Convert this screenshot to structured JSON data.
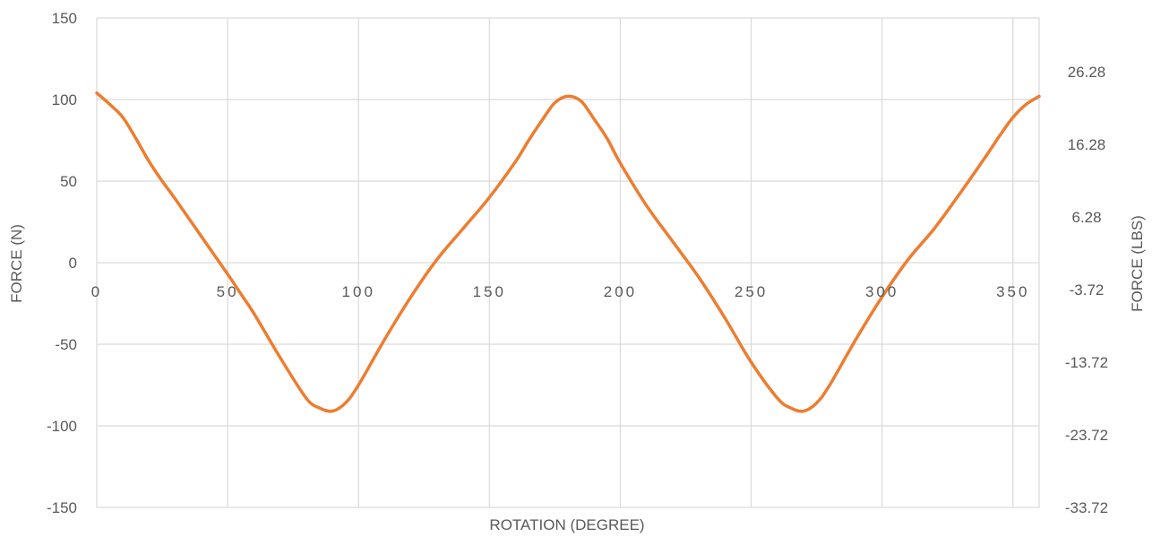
{
  "chart_data": {
    "type": "line",
    "xlabel": "ROTATION (DEGREE)",
    "ylabel": "FORCE (N)",
    "y2label": "FORCE (LBS)",
    "xlim": [
      0,
      360
    ],
    "ylim": [
      -150,
      150
    ],
    "grid": true,
    "x_ticks": [
      0,
      50,
      100,
      150,
      200,
      250,
      300,
      350
    ],
    "x_tick_labels": [
      "0",
      "50",
      "100",
      "150",
      "200",
      "250",
      "300",
      "350"
    ],
    "y_ticks": [
      -150,
      -100,
      -50,
      0,
      50,
      100,
      150
    ],
    "y_tick_labels": [
      "-150",
      "-100",
      "-50",
      "0",
      "50",
      "100",
      "150"
    ],
    "y2_ticks": [
      -33.72,
      -23.72,
      -13.72,
      -3.72,
      6.28,
      16.28,
      26.28
    ],
    "y2_tick_labels": [
      "-33.72",
      "-23.72",
      "-13.72",
      "-3.72",
      "6.28",
      "16.28",
      "26.28"
    ],
    "y2lim": [
      -33.72,
      33.72
    ],
    "series": [
      {
        "color": "#ED7D31",
        "x": [
          0,
          5,
          10,
          15,
          20,
          25,
          30,
          40,
          50,
          55,
          60,
          70,
          80,
          85,
          90,
          95,
          100,
          110,
          120,
          130,
          140,
          150,
          160,
          165,
          170,
          175,
          180,
          185,
          190,
          195,
          200,
          210,
          220,
          230,
          240,
          250,
          260,
          265,
          270,
          275,
          280,
          290,
          300,
          310,
          320,
          330,
          340,
          345,
          350,
          355,
          360
        ],
        "y": [
          104,
          97,
          89,
          76,
          62,
          50,
          39,
          16,
          -7,
          -19,
          -31,
          -58,
          -83,
          -89,
          -91,
          -86,
          -75,
          -47,
          -21,
          2,
          21,
          40,
          62,
          75,
          87,
          98,
          102,
          99,
          88,
          76,
          61,
          35,
          13,
          -9,
          -34,
          -61,
          -83,
          -89,
          -91,
          -86,
          -75,
          -47,
          -21,
          2,
          21,
          43,
          66,
          78,
          89,
          97,
          102
        ]
      }
    ]
  }
}
